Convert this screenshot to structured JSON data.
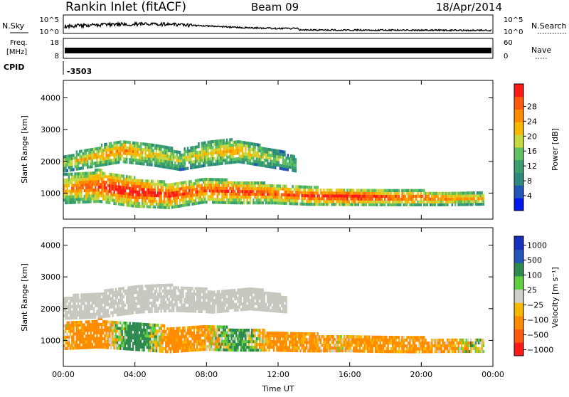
{
  "header": {
    "station": "Rankin Inlet (fitACF)",
    "beam": "Beam 09",
    "date": "18/Apr/2014"
  },
  "top_panels": {
    "nsky": {
      "label": "N.Sky",
      "left_ticks": [
        "10^5",
        "10^0"
      ],
      "right_ticks": [
        "10^5",
        "10^0"
      ],
      "right_label": "N.Search"
    },
    "freq": {
      "label_line1": "Freq.",
      "label_line2": "[MHz]",
      "left_ticks": [
        "18",
        "8"
      ],
      "right_ticks": [
        "60",
        "0"
      ],
      "right_label": "Nave"
    },
    "cpid": {
      "label": "CPID",
      "value": "-3503"
    }
  },
  "colors": {
    "power_scale": [
      "#0018f0",
      "#2456b8",
      "#2f8a7e",
      "#3aa070",
      "#60c060",
      "#c8d840",
      "#f8b800",
      "#ff8c00",
      "#ff5a10",
      "#ff1a1a"
    ],
    "velocity_scale": [
      "#ff1a1a",
      "#ff5a10",
      "#ff8c00",
      "#f8b800",
      "#d0d0c8",
      "#60d040",
      "#2f8a50",
      "#2456b8",
      "#1830c0"
    ],
    "ground_scatter": "#c8c8c0"
  },
  "chart_data": [
    {
      "type": "heatmap",
      "title": "Power",
      "ylabel": "Slant Range [km]",
      "xlabel": "",
      "x_ticks": [
        "00:00",
        "04:00",
        "08:00",
        "12:00",
        "16:00",
        "20:00",
        "00:00"
      ],
      "xlim_hours": [
        0,
        24
      ],
      "y_ticks": [
        1000,
        2000,
        3000,
        4000
      ],
      "ylim_km": [
        180,
        4550
      ],
      "colorbar": {
        "label": "Power [dB]",
        "ticks": [
          "4",
          "8",
          "12",
          "16",
          "20",
          "24",
          "28"
        ]
      },
      "echo_bands": [
        {
          "name": "main",
          "start_h": 0.0,
          "end_h": 23.5,
          "center_km": [
            1100,
            1200,
            1000,
            900,
            1050,
            1000,
            950,
            880,
            850,
            830,
            820,
            800,
            800
          ],
          "thickness_km": [
            900,
            1000,
            900,
            800,
            750,
            700,
            600,
            550,
            500,
            480,
            460,
            420,
            380
          ],
          "power_db": [
            20,
            26,
            28,
            26,
            24,
            26,
            24,
            26,
            28,
            26,
            24,
            22,
            20
          ]
        },
        {
          "name": "upper",
          "start_h": 0.0,
          "end_h": 13.0,
          "center_km": [
            1900,
            2100,
            2300,
            2200,
            2000,
            2250,
            2300,
            2100,
            1900
          ],
          "thickness_km": [
            500,
            600,
            700,
            700,
            600,
            800,
            700,
            600,
            500
          ],
          "power_db": [
            16,
            20,
            22,
            18,
            16,
            18,
            20,
            16,
            12
          ]
        }
      ],
      "x_span_hours": [
        0,
        23.5
      ]
    },
    {
      "type": "heatmap",
      "title": "Velocity",
      "ylabel": "Slant Range [km]",
      "xlabel": "Time UT",
      "x_ticks": [
        "00:00",
        "04:00",
        "08:00",
        "12:00",
        "16:00",
        "20:00",
        "00:00"
      ],
      "xlim_hours": [
        0,
        24
      ],
      "y_ticks": [
        1000,
        2000,
        3000,
        4000
      ],
      "ylim_km": [
        180,
        4550
      ],
      "colorbar": {
        "label": "Velocity [m s⁻¹]",
        "ticks": [
          "1000",
          "500",
          "100",
          "25",
          "−25",
          "−100",
          "−500",
          "−1000"
        ]
      },
      "echo_bands": [
        {
          "name": "ionospheric",
          "start_h": 0.0,
          "end_h": 23.5,
          "center_km": [
            1100,
            1200,
            1100,
            1000,
            1050,
            1000,
            950,
            900,
            880,
            850,
            830,
            820,
            800
          ],
          "thickness_km": [
            800,
            900,
            850,
            800,
            750,
            700,
            600,
            550,
            500,
            480,
            460,
            420,
            380
          ],
          "velocity_ms": [
            -100,
            -300,
            300,
            -200,
            -150,
            200,
            -250,
            -150,
            -100,
            -200,
            -150,
            -100,
            50
          ]
        },
        {
          "name": "ground_scatter",
          "start_h": 0.0,
          "end_h": 12.5,
          "center_km": [
            2000,
            2100,
            2300,
            2300,
            2200,
            2300,
            2100
          ],
          "thickness_km": [
            700,
            800,
            900,
            800,
            700,
            700,
            500
          ]
        }
      ],
      "x_span_hours": [
        0,
        23.5
      ]
    }
  ]
}
